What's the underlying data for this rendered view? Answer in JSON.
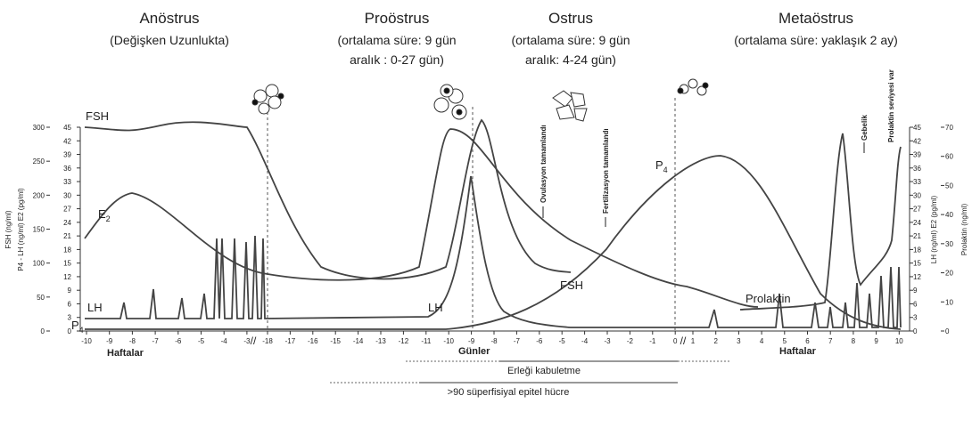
{
  "phases": [
    {
      "title": "Anöstrus",
      "lines": [
        "(Değişken Uzunlukta)"
      ]
    },
    {
      "title": "Proöstrus",
      "lines": [
        "(ortalama süre: 9 gün",
        "aralık : 0-27 gün)"
      ]
    },
    {
      "title": "Ostrus",
      "lines": [
        "(ortalama süre: 9 gün",
        "aralık: 4-24 gün)"
      ]
    },
    {
      "title": "Metaöstrus",
      "lines": [
        "(ortalama süre: yaklaşık 2 ay)"
      ]
    }
  ],
  "left_axes": {
    "fsh_label": "FSH (ng/ml)",
    "fsh_ticks": [
      "0",
      "50",
      "100",
      "150",
      "200",
      "250",
      "300"
    ],
    "p4_label": "P4 - LH (ng/ml)  E2 (pg/ml)",
    "p4_ticks": [
      "0",
      "3",
      "6",
      "9",
      "12",
      "15",
      "18",
      "21",
      "24",
      "27",
      "30",
      "33",
      "36",
      "39",
      "42",
      "45"
    ]
  },
  "right_axes": {
    "lh_label": "LH (ng/ml) E2 (pg/ml)",
    "lh_ticks": [
      "0",
      "3",
      "6",
      "9",
      "12",
      "15",
      "18",
      "21",
      "24",
      "27",
      "30",
      "33",
      "36",
      "39",
      "42",
      "45"
    ],
    "prl_label": "Prolaktin (ng/ml)",
    "prl_ticks": [
      "0",
      "10",
      "20",
      "30",
      "40",
      "50",
      "60",
      "70"
    ]
  },
  "curve_labels": {
    "fsh": "FSH",
    "e2": "E",
    "e2_sub": "2",
    "lh": "LH",
    "p4": "P",
    "p4_sub": "4",
    "fsh2": "FSH",
    "lh2": "LH",
    "p4b": "P",
    "p4b_sub": "4",
    "prolaktin": "Prolaktin"
  },
  "events": {
    "ovulation": "Ovulasyon tamamlandı",
    "fertilization": "Fertilizasyon tamamlandı",
    "pregnancy": "Gebelik",
    "prolactin": "Prolaktin seviyesi var"
  },
  "x_axis": {
    "weeks_before": [
      "-10",
      "-9",
      "-8",
      "-7",
      "-6",
      "-5",
      "-4",
      "-3"
    ],
    "days": [
      "-18",
      "-17",
      "-16",
      "-15",
      "-14",
      "-13",
      "-12",
      "-11",
      "-10",
      "-9",
      "-8",
      "-7",
      "-6",
      "-5",
      "-4",
      "-3",
      "-2",
      "-1",
      "0"
    ],
    "weeks_after": [
      "1",
      "2",
      "3",
      "4",
      "5",
      "6",
      "7",
      "8",
      "9",
      "10"
    ],
    "break": "//",
    "weeks_label": "Haftalar",
    "days_label": "Günler",
    "weeks_label2": "Haftalar"
  },
  "bars": {
    "receptive": "Erleği kabuletme",
    "cells": ">90 süperfisiyal epitel hücre"
  }
}
